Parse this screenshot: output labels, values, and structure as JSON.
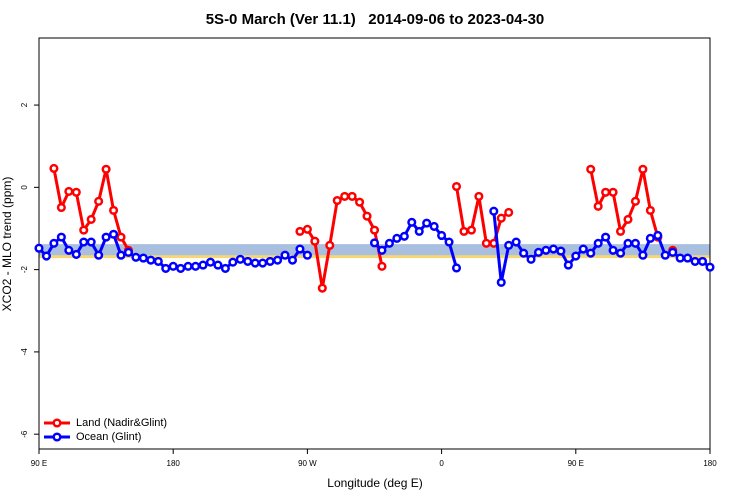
{
  "chart_data": {
    "type": "line",
    "title": "5S-0 March (Ver 11.1)   2014-09-06 to 2023-04-30",
    "x_label": "Longitude (deg E)",
    "y_label": "XCO2 - MLO trend (ppm)",
    "x": [
      90,
      95,
      100,
      105,
      110,
      115,
      120,
      125,
      130,
      135,
      140,
      145,
      150,
      155,
      160,
      165,
      170,
      175,
      180,
      185,
      190,
      195,
      200,
      205,
      210,
      215,
      220,
      225,
      230,
      235,
      240,
      245,
      250,
      255,
      260,
      265,
      270,
      275,
      280,
      285,
      290,
      295,
      300,
      305,
      310,
      315,
      320,
      325,
      330,
      335,
      340,
      345,
      350,
      355,
      360,
      365,
      370,
      375,
      380,
      385,
      390,
      395,
      400,
      405,
      410,
      415,
      420,
      425,
      430,
      435,
      440,
      445,
      450,
      455,
      460,
      465,
      470,
      475,
      480,
      485,
      490,
      495,
      500,
      505,
      510,
      515,
      520,
      525,
      530,
      535,
      540
    ],
    "series": [
      {
        "name": "Land (Nadir&Glint)",
        "color": "#ff0000",
        "values": [
          null,
          null,
          0.46,
          -0.49,
          -0.1,
          -0.12,
          -1.04,
          -0.78,
          -0.34,
          0.44,
          -0.56,
          -1.21,
          -1.53,
          null,
          null,
          null,
          null,
          null,
          null,
          null,
          null,
          null,
          null,
          null,
          null,
          null,
          null,
          null,
          null,
          null,
          null,
          null,
          null,
          null,
          null,
          -1.07,
          -1.02,
          -1.31,
          -2.45,
          -1.41,
          -0.32,
          -0.22,
          -0.22,
          -0.36,
          -0.7,
          -1.04,
          -1.92,
          null,
          null,
          null,
          null,
          null,
          null,
          null,
          null,
          null,
          0.02,
          -1.07,
          -1.04,
          -0.22,
          -1.36,
          -1.36,
          -0.75,
          -0.61,
          null,
          null,
          null,
          null,
          null,
          null,
          null,
          null,
          null,
          null,
          0.44,
          -0.46,
          -0.12,
          -0.12,
          -1.07,
          -0.78,
          -0.34,
          0.44,
          -0.56,
          -1.21,
          null,
          -1.53,
          null,
          null,
          null,
          null,
          null
        ]
      },
      {
        "name": "Ocean (Glint)",
        "color": "#0000ff",
        "values": [
          -1.48,
          -1.67,
          -1.36,
          -1.21,
          -1.53,
          -1.63,
          -1.33,
          -1.33,
          -1.65,
          -1.21,
          -1.14,
          -1.65,
          -1.58,
          -1.7,
          -1.72,
          -1.77,
          -1.8,
          -1.97,
          -1.92,
          -1.97,
          -1.92,
          -1.92,
          -1.89,
          -1.82,
          -1.89,
          -1.97,
          -1.82,
          -1.75,
          -1.8,
          -1.84,
          -1.84,
          -1.8,
          -1.77,
          -1.65,
          -1.77,
          -1.5,
          -1.65,
          null,
          null,
          null,
          null,
          null,
          null,
          null,
          null,
          -1.35,
          -1.53,
          -1.36,
          -1.24,
          -1.19,
          -0.85,
          -1.07,
          -0.87,
          -0.95,
          -1.17,
          -1.33,
          -1.96,
          null,
          null,
          null,
          null,
          -0.58,
          -2.31,
          -1.41,
          -1.33,
          -1.6,
          -1.75,
          -1.58,
          -1.53,
          -1.5,
          -1.55,
          -1.89,
          -1.67,
          -1.5,
          -1.6,
          -1.36,
          -1.21,
          -1.53,
          -1.6,
          -1.36,
          -1.36,
          -1.65,
          -1.24,
          -1.17,
          -1.65,
          -1.58,
          -1.72,
          -1.72,
          -1.8,
          -1.8,
          -1.94
        ]
      }
    ],
    "bands": [
      {
        "color": "#f7d774",
        "range": [
          -1.5,
          -1.72
        ]
      },
      {
        "color": "#a9bfdf",
        "range": [
          -1.38,
          -1.65
        ]
      }
    ],
    "xlim": [
      90,
      540
    ],
    "xticks": [
      {
        "value": 90,
        "label": "90 E"
      },
      180,
      {
        "value": 270,
        "label": "90 W"
      },
      {
        "value": 360,
        "label": "0"
      },
      {
        "value": 450,
        "label": "90 E"
      },
      {
        "value": 540,
        "label": "180"
      }
    ],
    "ylim": [
      -6.36,
      3.63
    ],
    "yticks": [
      -6,
      -4,
      -2,
      0,
      2
    ],
    "legend": "bottom-left"
  }
}
